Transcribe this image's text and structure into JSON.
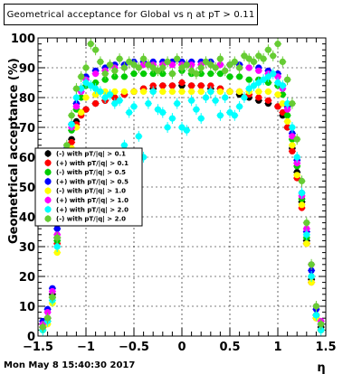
{
  "title": "Geometrical acceptance for Global vs   η at pT > 0.11",
  "footer": "Mon May  8 15:40:30 2017",
  "chart_data": {
    "type": "scatter",
    "title": "Geometrical acceptance for Global vs   η at pT > 0.11",
    "xlabel": "η",
    "ylabel": "Geometrical acceptance (%)",
    "xlim": [
      -1.5,
      1.5
    ],
    "ylim": [
      0,
      100
    ],
    "x_ticks": [
      -1.5,
      -1,
      -0.5,
      0,
      0.5,
      1,
      1.5
    ],
    "x_tick_labels": [
      "−1.5",
      "−1",
      "−0.5",
      "0",
      "0.5",
      "1",
      "1.5"
    ],
    "y_ticks": [
      0,
      10,
      20,
      30,
      40,
      50,
      60,
      70,
      80,
      90,
      100
    ],
    "y_tick_labels": [
      "0",
      "10",
      "20",
      "30",
      "40",
      "50",
      "60",
      "70",
      "80",
      "90",
      "100"
    ],
    "grid": true,
    "legend_position": "left-middle",
    "series": [
      {
        "name": "(-) with pT/|q| > 0.1",
        "color": "#000000",
        "marker": "circle",
        "x": [
          -1.45,
          -1.4,
          -1.35,
          -1.3,
          -1.25,
          -1.2,
          -1.15,
          -1.1,
          -1.05,
          -1.0,
          -0.9,
          -0.8,
          -0.7,
          -0.6,
          -0.5,
          -0.4,
          -0.3,
          -0.2,
          -0.1,
          0.0,
          0.1,
          0.2,
          0.3,
          0.4,
          0.5,
          0.6,
          0.7,
          0.8,
          0.9,
          1.0,
          1.05,
          1.1,
          1.15,
          1.2,
          1.25,
          1.3,
          1.35,
          1.4,
          1.45
        ],
        "y": [
          3,
          6,
          14,
          33,
          47,
          60,
          66,
          72,
          75,
          76,
          78,
          79,
          80,
          81,
          82,
          83,
          83,
          84,
          84,
          84,
          84,
          84,
          83,
          83,
          82,
          81,
          80,
          79,
          78,
          77,
          74,
          70,
          63,
          55,
          45,
          32,
          19,
          7,
          3
        ]
      },
      {
        "name": "(+) with pT/|q| > 0.1",
        "color": "#ff0000",
        "marker": "circle",
        "x": [
          -1.45,
          -1.4,
          -1.35,
          -1.3,
          -1.25,
          -1.2,
          -1.15,
          -1.1,
          -1.05,
          -1.0,
          -0.9,
          -0.8,
          -0.7,
          -0.6,
          -0.5,
          -0.4,
          -0.3,
          -0.2,
          -0.1,
          0.0,
          0.1,
          0.2,
          0.3,
          0.4,
          0.5,
          0.6,
          0.7,
          0.8,
          0.9,
          1.0,
          1.05,
          1.1,
          1.15,
          1.2,
          1.25,
          1.3,
          1.35,
          1.4,
          1.45
        ],
        "y": [
          3,
          5,
          13,
          31,
          45,
          58,
          65,
          71,
          74,
          76,
          78,
          79,
          80,
          81,
          82,
          83,
          84,
          84,
          84,
          85,
          84,
          84,
          84,
          83,
          82,
          82,
          81,
          80,
          79,
          77,
          75,
          70,
          62,
          53,
          43,
          31,
          18,
          6,
          2
        ]
      },
      {
        "name": "(-) with pT/|q| > 0.5",
        "color": "#00cc00",
        "marker": "circle",
        "x": [
          -1.45,
          -1.4,
          -1.35,
          -1.3,
          -1.25,
          -1.2,
          -1.15,
          -1.1,
          -1.05,
          -1.0,
          -0.9,
          -0.8,
          -0.7,
          -0.6,
          -0.5,
          -0.4,
          -0.3,
          -0.2,
          -0.1,
          0.0,
          0.1,
          0.2,
          0.3,
          0.4,
          0.5,
          0.6,
          0.7,
          0.8,
          0.9,
          1.0,
          1.05,
          1.1,
          1.15,
          1.2,
          1.25,
          1.3,
          1.35,
          1.4,
          1.45
        ],
        "y": [
          2,
          5,
          13,
          32,
          46,
          61,
          69,
          76,
          80,
          84,
          85,
          86,
          87,
          87,
          88,
          88,
          88,
          88,
          88,
          89,
          88,
          88,
          88,
          88,
          87,
          87,
          86,
          86,
          85,
          84,
          81,
          74,
          66,
          57,
          46,
          33,
          20,
          7,
          2
        ]
      },
      {
        "name": "(+) with pT/|q| > 0.5",
        "color": "#0000ff",
        "marker": "circle",
        "x": [
          -1.45,
          -1.4,
          -1.35,
          -1.3,
          -1.25,
          -1.2,
          -1.15,
          -1.1,
          -1.05,
          -1.0,
          -0.9,
          -0.8,
          -0.7,
          -0.6,
          -0.5,
          -0.4,
          -0.3,
          -0.2,
          -0.1,
          0.0,
          0.1,
          0.2,
          0.3,
          0.4,
          0.5,
          0.6,
          0.7,
          0.8,
          0.9,
          1.0,
          1.05,
          1.1,
          1.15,
          1.2,
          1.25,
          1.3,
          1.35,
          1.4,
          1.45
        ],
        "y": [
          5,
          9,
          16,
          36,
          50,
          63,
          71,
          78,
          83,
          87,
          89,
          90,
          91,
          91,
          92,
          92,
          92,
          92,
          92,
          92,
          92,
          92,
          92,
          91,
          91,
          91,
          90,
          90,
          89,
          88,
          84,
          77,
          68,
          59,
          48,
          35,
          22,
          9,
          4
        ]
      },
      {
        "name": "(-) with pT/|q| > 1.0",
        "color": "#ffff00",
        "marker": "circle",
        "x": [
          -1.45,
          -1.4,
          -1.35,
          -1.3,
          -1.25,
          -1.2,
          -1.15,
          -1.1,
          -1.05,
          -1.0,
          -0.9,
          -0.8,
          -0.7,
          -0.6,
          -0.5,
          -0.4,
          -0.3,
          -0.2,
          -0.1,
          0.0,
          0.1,
          0.2,
          0.3,
          0.4,
          0.5,
          0.6,
          0.7,
          0.8,
          0.9,
          1.0,
          1.05,
          1.1,
          1.15,
          1.2,
          1.25,
          1.3,
          1.35,
          1.4,
          1.45
        ],
        "y": [
          2,
          4,
          11,
          28,
          42,
          56,
          63,
          70,
          75,
          80,
          81,
          82,
          82,
          82,
          82,
          82,
          82,
          82,
          82,
          82,
          82,
          82,
          82,
          82,
          82,
          82,
          82,
          82,
          82,
          81,
          78,
          72,
          64,
          54,
          44,
          31,
          18,
          6,
          2
        ]
      },
      {
        "name": "(+) with pT/|q| > 1.0",
        "color": "#ff00ff",
        "marker": "circle",
        "x": [
          -1.45,
          -1.4,
          -1.35,
          -1.3,
          -1.25,
          -1.2,
          -1.15,
          -1.1,
          -1.05,
          -1.0,
          -0.9,
          -0.8,
          -0.7,
          -0.6,
          -0.5,
          -0.4,
          -0.3,
          -0.2,
          -0.1,
          0.0,
          0.1,
          0.2,
          0.3,
          0.4,
          0.5,
          0.6,
          0.7,
          0.8,
          0.9,
          1.0,
          1.05,
          1.1,
          1.15,
          1.2,
          1.25,
          1.3,
          1.35,
          1.4,
          1.45
        ],
        "y": [
          4,
          8,
          15,
          34,
          48,
          62,
          70,
          77,
          82,
          86,
          88,
          89,
          90,
          90,
          91,
          91,
          91,
          91,
          91,
          91,
          91,
          91,
          91,
          91,
          91,
          90,
          90,
          89,
          88,
          87,
          83,
          76,
          67,
          58,
          47,
          36,
          24,
          10,
          5
        ]
      },
      {
        "name": "(+) with pT/|q| > 2.0",
        "color": "#00ffff",
        "marker": "circle",
        "x": [
          -1.45,
          -1.4,
          -1.35,
          -1.3,
          -1.25,
          -1.2,
          -1.15,
          -1.1,
          -1.05,
          -1.0,
          -0.95,
          -0.9,
          -0.85,
          -0.8,
          -0.75,
          -0.7,
          -0.65,
          -0.6,
          -0.55,
          -0.5,
          -0.45,
          -0.4,
          -0.35,
          -0.3,
          -0.25,
          -0.2,
          -0.15,
          -0.1,
          -0.05,
          0.0,
          0.05,
          0.1,
          0.15,
          0.2,
          0.25,
          0.3,
          0.35,
          0.4,
          0.45,
          0.5,
          0.55,
          0.6,
          0.65,
          0.7,
          0.75,
          0.8,
          0.85,
          0.9,
          0.95,
          1.0,
          1.05,
          1.1,
          1.15,
          1.2,
          1.25,
          1.3,
          1.35,
          1.4,
          1.45
        ],
        "y": [
          2,
          5,
          12,
          30,
          44,
          60,
          71,
          80,
          83,
          85,
          84,
          83,
          82,
          80,
          81,
          78,
          79,
          64,
          75,
          77,
          67,
          60,
          78,
          82,
          76,
          75,
          70,
          73,
          78,
          70,
          69,
          79,
          76,
          73,
          80,
          82,
          79,
          74,
          80,
          75,
          74,
          77,
          80,
          83,
          84,
          85,
          86,
          87,
          88,
          85,
          84,
          78,
          70,
          60,
          48,
          34,
          20,
          7,
          2
        ]
      },
      {
        "name": "(-) with pT/|q| > 2.0",
        "color": "#66cc33",
        "marker": "circle",
        "x": [
          -1.45,
          -1.4,
          -1.35,
          -1.3,
          -1.25,
          -1.2,
          -1.15,
          -1.1,
          -1.05,
          -1.0,
          -0.95,
          -0.9,
          -0.85,
          -0.8,
          -0.75,
          -0.7,
          -0.65,
          -0.6,
          -0.55,
          -0.5,
          -0.45,
          -0.4,
          -0.35,
          -0.3,
          -0.25,
          -0.2,
          -0.15,
          -0.1,
          -0.05,
          0.0,
          0.05,
          0.1,
          0.15,
          0.2,
          0.25,
          0.3,
          0.35,
          0.4,
          0.45,
          0.5,
          0.55,
          0.6,
          0.65,
          0.7,
          0.75,
          0.8,
          0.85,
          0.9,
          0.95,
          1.0,
          1.05,
          1.1,
          1.15,
          1.2,
          1.25,
          1.3,
          1.35,
          1.4,
          1.45
        ],
        "y": [
          3,
          6,
          13,
          33,
          48,
          64,
          74,
          83,
          87,
          90,
          98,
          96,
          92,
          88,
          91,
          89,
          93,
          90,
          92,
          91,
          90,
          93,
          91,
          90,
          89,
          90,
          92,
          88,
          93,
          90,
          91,
          89,
          88,
          90,
          92,
          91,
          90,
          93,
          89,
          91,
          92,
          90,
          94,
          93,
          92,
          94,
          93,
          96,
          94,
          98,
          92,
          86,
          78,
          66,
          52,
          38,
          24,
          10,
          4
        ]
      }
    ]
  }
}
